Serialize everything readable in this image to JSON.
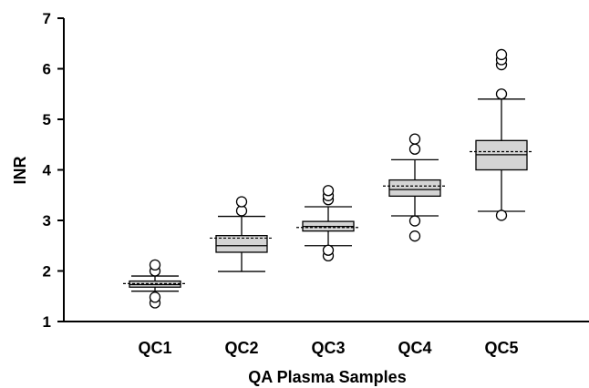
{
  "chart_data": {
    "type": "box",
    "xlabel": "QA Plasma Samples",
    "ylabel": "INR",
    "ylim": [
      1,
      7
    ],
    "yticks": [
      "1",
      "2",
      "3",
      "4",
      "5",
      "6",
      "7"
    ],
    "categories": [
      "QC1",
      "QC2",
      "QC3",
      "QC4",
      "QC5"
    ],
    "boxes": [
      {
        "category": "QC1",
        "whisker_low": 1.6,
        "q1": 1.68,
        "median": 1.73,
        "mean": 1.75,
        "q3": 1.8,
        "whisker_high": 1.9,
        "outliers": [
          1.37,
          1.48,
          2.0,
          2.12
        ]
      },
      {
        "category": "QC2",
        "whisker_low": 1.99,
        "q1": 2.37,
        "median": 2.5,
        "mean": 2.65,
        "q3": 2.7,
        "whisker_high": 3.08,
        "outliers": [
          3.19,
          3.37
        ]
      },
      {
        "category": "QC3",
        "whisker_low": 2.5,
        "q1": 2.79,
        "median": 2.88,
        "mean": 2.86,
        "q3": 2.98,
        "whisker_high": 3.27,
        "outliers": [
          2.3,
          2.41,
          3.41,
          3.49,
          3.59
        ]
      },
      {
        "category": "QC4",
        "whisker_low": 3.09,
        "q1": 3.48,
        "median": 3.61,
        "mean": 3.68,
        "q3": 3.8,
        "whisker_high": 4.2,
        "outliers": [
          2.69,
          2.99,
          4.41,
          4.61
        ]
      },
      {
        "category": "QC5",
        "whisker_low": 3.18,
        "q1": 4.0,
        "median": 4.3,
        "mean": 4.36,
        "q3": 4.58,
        "whisker_high": 5.4,
        "outliers": [
          3.1,
          5.5,
          6.08,
          6.18,
          6.28
        ]
      }
    ],
    "box_fill": "#d4d4d4",
    "line_color": "#000000",
    "mean_style": "dotted line",
    "grid": false
  }
}
